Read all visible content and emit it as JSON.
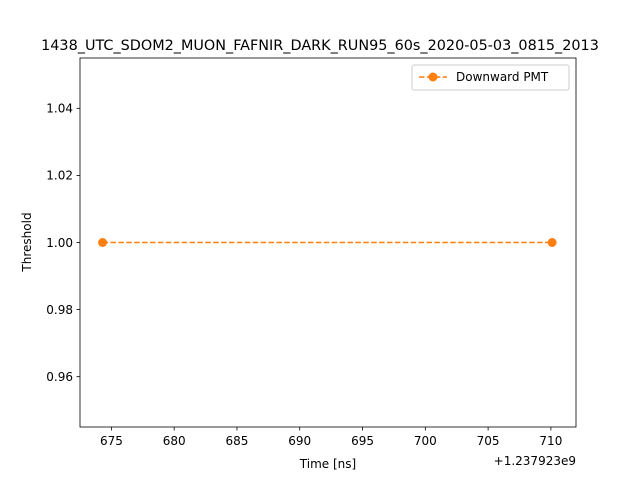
{
  "chart_data": {
    "type": "line",
    "title": "1438_UTC_SDOM2_MUON_FAFNIR_DARK_RUN95_60s_2020-05-03_0815_2013",
    "xlabel": "Time [ns]",
    "ylabel": "Threshold",
    "x_offset_label": "+1.237923e9",
    "xlim": [
      672.5,
      712
    ],
    "ylim": [
      0.945,
      1.055
    ],
    "x_ticks": [
      675,
      680,
      685,
      690,
      695,
      700,
      705,
      710
    ],
    "x_tick_labels": [
      "675",
      "680",
      "685",
      "690",
      "695",
      "700",
      "705",
      "710"
    ],
    "y_ticks": [
      0.96,
      0.98,
      1.0,
      1.02,
      1.04
    ],
    "y_tick_labels": [
      "0.96",
      "0.98",
      "1.00",
      "1.02",
      "1.04"
    ],
    "grid": false,
    "legend_position": "upper right",
    "series": [
      {
        "name": "Downward PMT",
        "color": "#ff7f0e",
        "line_style": "dashed",
        "marker": "circle",
        "x": [
          674.3,
          710.1
        ],
        "y": [
          1.0,
          1.0
        ]
      }
    ]
  }
}
